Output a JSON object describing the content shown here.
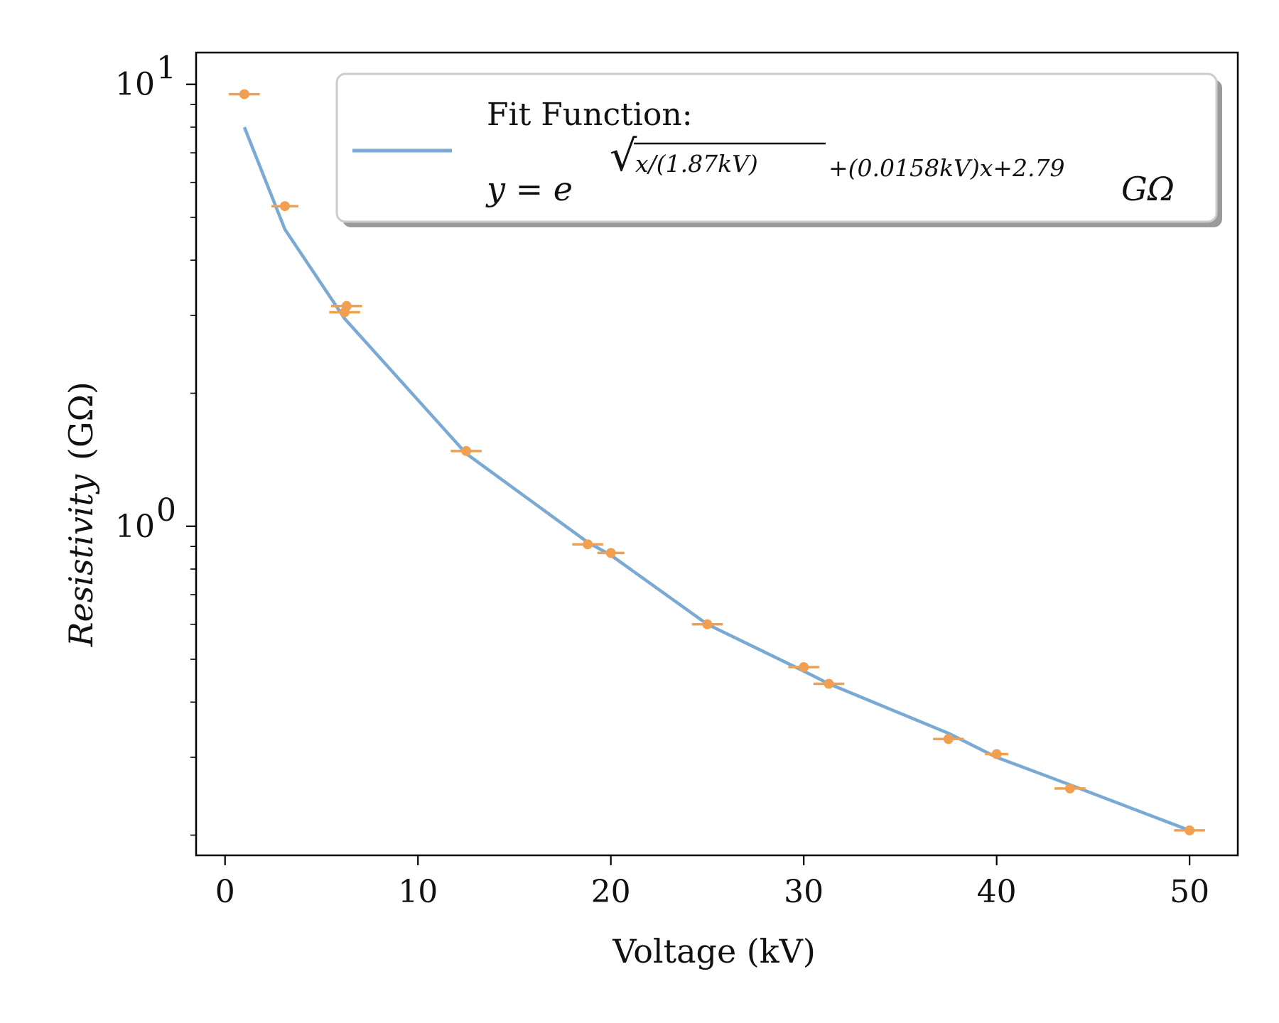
{
  "chart_data": {
    "type": "scatter",
    "xlabel": "Voltage (kV)",
    "ylabel": "Resistivity",
    "ylabel_unit": "(GΩ)",
    "xlim": [
      -1.5,
      52.5
    ],
    "ylim": [
      0.18,
      11.8
    ],
    "y_scale": "log",
    "x_ticks": [
      0,
      10,
      20,
      30,
      40,
      50
    ],
    "y_ticks": [
      {
        "value": 1,
        "base": "10",
        "exp": "0"
      },
      {
        "value": 10,
        "base": "10",
        "exp": "1"
      }
    ],
    "grid": false,
    "legend": {
      "position": "top-right",
      "title": "Fit Function:",
      "equation": {
        "lhs": "y = e",
        "root_arg": "x/(1.87kV)",
        "exp_tail": "+(0.0158kV)x+2.79",
        "unit": "GΩ"
      }
    },
    "series": [
      {
        "kind": "errorbar",
        "color": "#f0a050",
        "x": [
          1.0,
          3.1,
          6.2,
          6.3,
          12.5,
          18.8,
          20.0,
          25.0,
          30.0,
          31.3,
          37.5,
          40.0,
          43.8,
          50.0
        ],
        "y": [
          9.5,
          5.3,
          3.05,
          3.15,
          1.48,
          0.91,
          0.87,
          0.6,
          0.48,
          0.44,
          0.33,
          0.305,
          0.255,
          0.205
        ],
        "xerr": [
          0.8,
          0.7,
          0.8,
          0.8,
          0.8,
          0.8,
          0.7,
          0.8,
          0.8,
          0.8,
          0.8,
          0.6,
          0.8,
          0.8
        ]
      },
      {
        "kind": "line",
        "color": "#7aaad4",
        "x": [
          1.0,
          3.1,
          6.2,
          12.5,
          18.8,
          20.0,
          25.0,
          30.0,
          31.3,
          37.5,
          40.0,
          43.8,
          50.0
        ],
        "y": [
          8.0,
          4.7,
          2.95,
          1.46,
          0.92,
          0.86,
          0.6,
          0.47,
          0.44,
          0.34,
          0.3,
          0.26,
          0.205
        ]
      }
    ]
  }
}
